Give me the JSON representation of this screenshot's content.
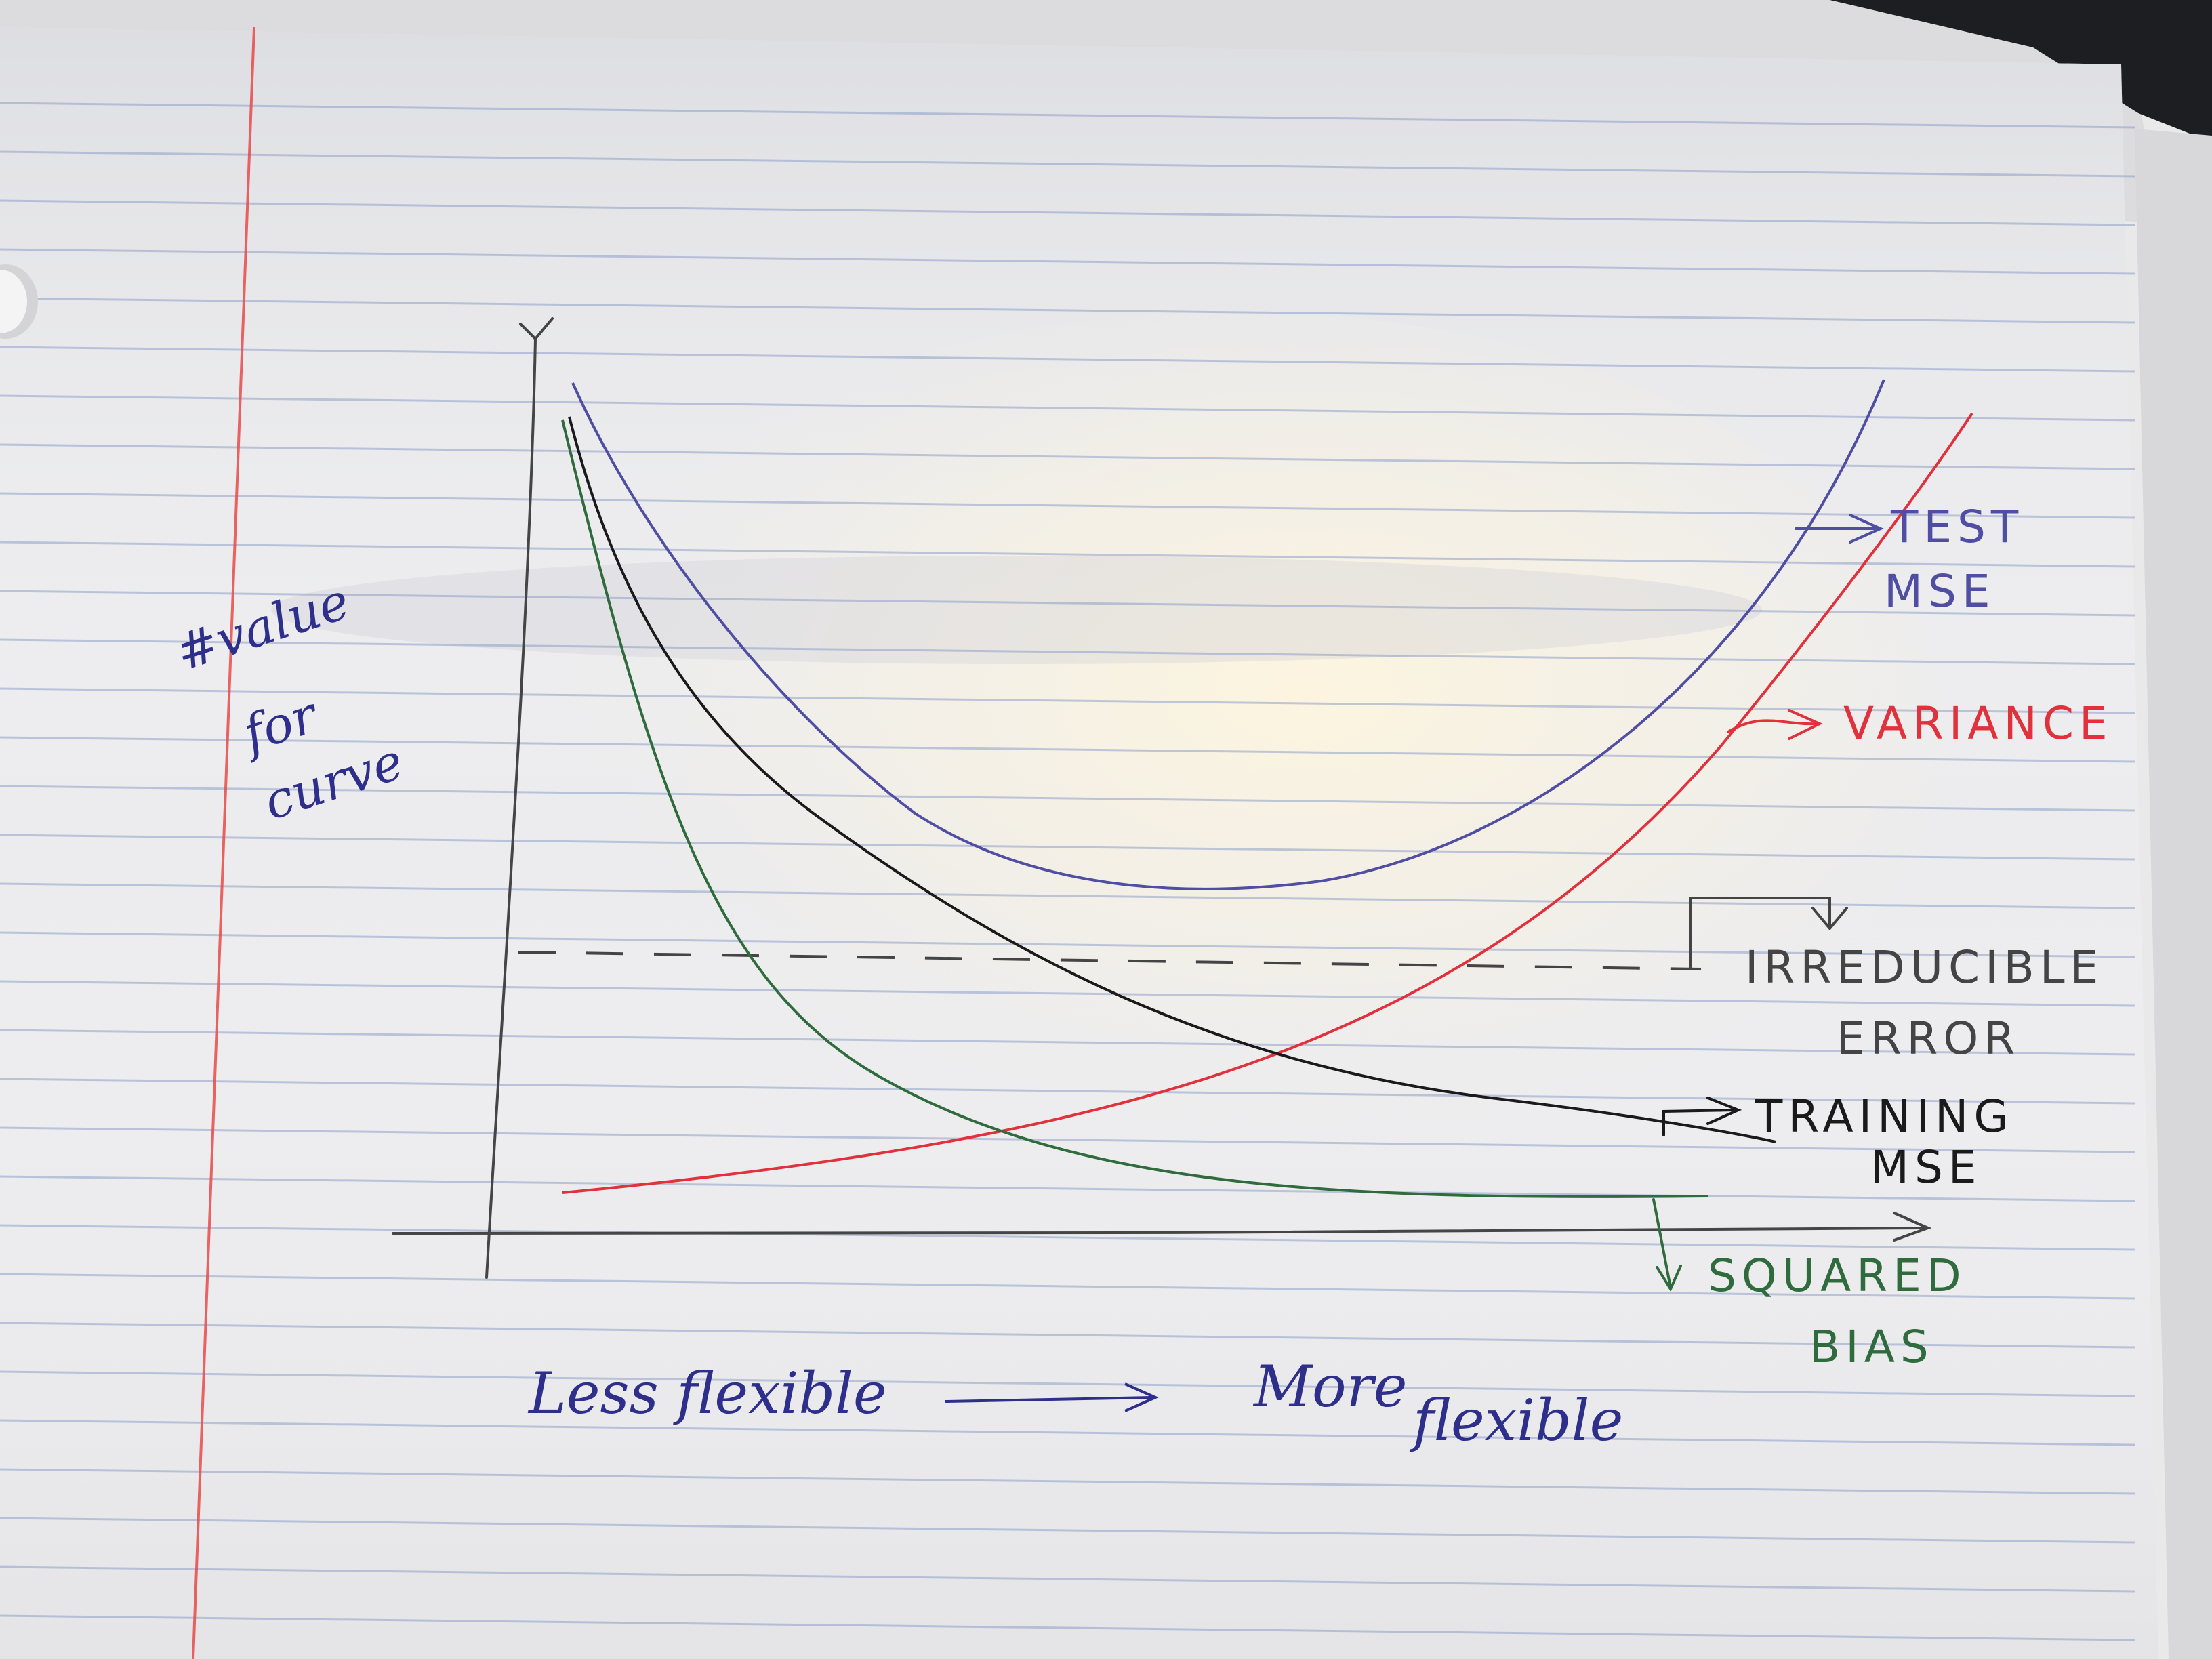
{
  "diagram": {
    "y_axis_label": [
      "#value",
      "for",
      "curve"
    ],
    "x_axis_label_left": "Less flexible",
    "x_axis_label_right": [
      "More",
      "flexible"
    ],
    "curves": [
      {
        "key": "test",
        "label": [
          "TEST",
          "MSE"
        ],
        "color": "#4f4ea3"
      },
      {
        "key": "variance",
        "label": [
          "VARIANCE"
        ],
        "color": "#e0313c"
      },
      {
        "key": "irreducible",
        "label": [
          "IRREDUCIBLE",
          "ERROR"
        ],
        "color": "#444444"
      },
      {
        "key": "training",
        "label": [
          "TRAINING",
          "MSE"
        ],
        "color": "#1a1a1a"
      },
      {
        "key": "bias",
        "label": [
          "SQUARED",
          "BIAS"
        ],
        "color": "#2f6b3d"
      }
    ]
  },
  "colors": {
    "paper": "#e9e9ea",
    "rule_line": "#8fa0c8",
    "margin_line": "#e94a4a",
    "axis": "#444444",
    "ink_blue": "#2e2f8a"
  }
}
